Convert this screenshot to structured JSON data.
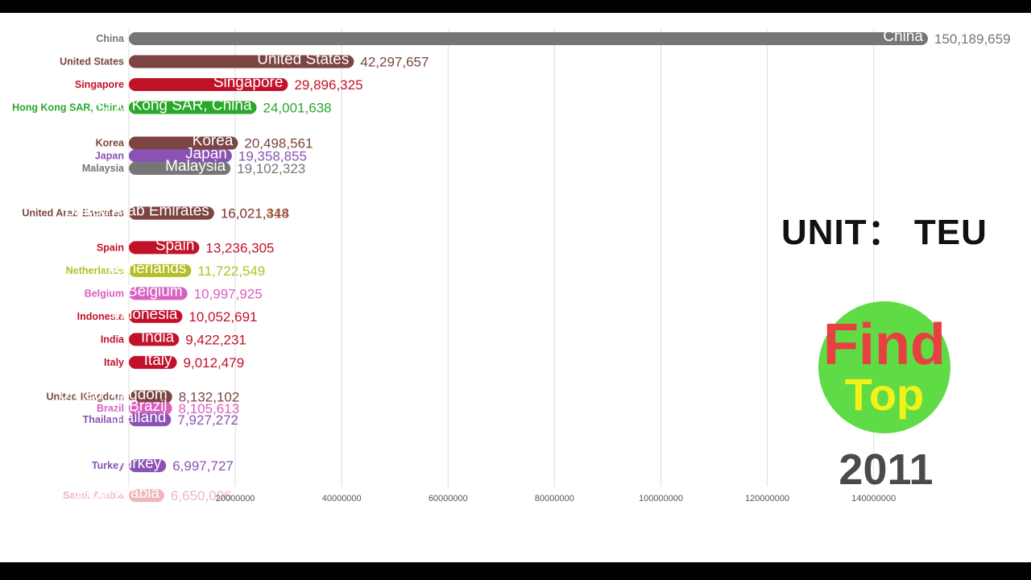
{
  "chart_data": {
    "type": "bar",
    "orientation": "horizontal",
    "unit_label": "UNIT： TEU",
    "year": "2011",
    "logo": {
      "line1": "Find",
      "line2": "Top"
    },
    "xticks": [
      20000000,
      40000000,
      60000000,
      80000000,
      100000000,
      120000000,
      140000000
    ],
    "xtick_labels": [
      "20000000",
      "40000000",
      "60000000",
      "80000000",
      "100000000",
      "120000000",
      "140000000"
    ],
    "xlim": [
      0,
      150189659
    ],
    "grid": true,
    "series": [
      {
        "name": "China",
        "value": 150189659,
        "value_label": "150,189,659",
        "color": "#767676",
        "rank": 0
      },
      {
        "name": "United States",
        "value": 42297657,
        "value_label": "42,297,657",
        "color": "#7b4541",
        "rank": 1
      },
      {
        "name": "Singapore",
        "value": 29896325,
        "value_label": "29,896,325",
        "color": "#c2122a",
        "rank": 2
      },
      {
        "name": "Hong Kong SAR, China",
        "value": 24001638,
        "value_label": "24,001,638",
        "color": "#2aa82a",
        "rank": 3
      },
      {
        "name": "Korea",
        "value": 20498561,
        "value_label": "20,498,561",
        "color": "#7b4541",
        "rank": 4.55
      },
      {
        "name": "Japan",
        "value": 19358855,
        "value_label": "19,358,855",
        "color": "#8a52b4",
        "rank": 5.1
      },
      {
        "name": "Malaysia",
        "value": 19102323,
        "value_label": "19,102,323",
        "color": "#767676",
        "rank": 5.65
      },
      {
        "name": "Emirates",
        "value": 16021414,
        "value_label": "16,021,414",
        "color": "#e27b3a",
        "rank": 7.6
      },
      {
        "name": "United Arab Emirates",
        "value": 16021348,
        "value_label": "16,021,348",
        "color": "#7b4541",
        "rank": 7.6
      },
      {
        "name": "Spain",
        "value": 13236305,
        "value_label": "13,236,305",
        "color": "#c2122a",
        "rank": 9.1
      },
      {
        "name": "Netherlands",
        "value": 11722549,
        "value_label": "11,722,549",
        "color": "#b4bf26",
        "rank": 10.1
      },
      {
        "name": "Belgium",
        "value": 10997925,
        "value_label": "10,997,925",
        "color": "#d95fc0",
        "rank": 11.1
      },
      {
        "name": "Indonesia",
        "value": 10052691,
        "value_label": "10,052,691",
        "color": "#c2122a",
        "rank": 12.1
      },
      {
        "name": "India",
        "value": 9422231,
        "value_label": "9,422,231",
        "color": "#c2122a",
        "rank": 13.1
      },
      {
        "name": "Italy",
        "value": 9012479,
        "value_label": "9,012,479",
        "color": "#c2122a",
        "rank": 14.1
      },
      {
        "name": "United Kingdom",
        "value": 8132102,
        "value_label": "8,132,102",
        "color": "#7b4541",
        "rank": 15.6
      },
      {
        "name": "Brazil",
        "value": 8105613,
        "value_label": "8,105,613",
        "color": "#d95fc0",
        "rank": 16.1
      },
      {
        "name": "Thailand",
        "value": 7927272,
        "value_label": "7,927,272",
        "color": "#8a52b4",
        "rank": 16.6
      },
      {
        "name": "Turkey",
        "value": 6997727,
        "value_label": "6,997,727",
        "color": "#8a52b4",
        "rank": 18.6
      },
      {
        "name": "Saudi Arabia",
        "value": 6650006,
        "value_label": "6,650,006",
        "color": "#f0b6c0",
        "rank": 19.9
      }
    ]
  }
}
